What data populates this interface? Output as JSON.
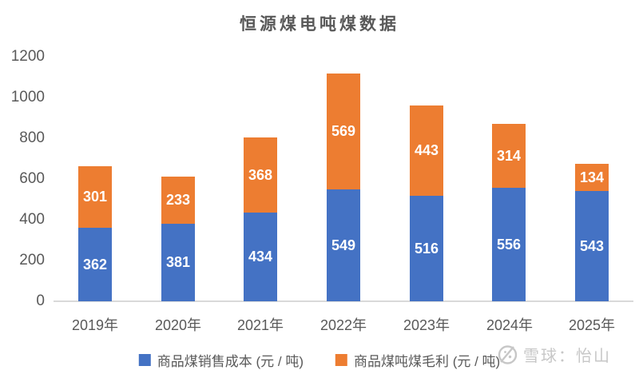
{
  "chart_data": {
    "type": "bar",
    "stacked": true,
    "title": "恒源煤电吨煤数据",
    "categories": [
      "2019年",
      "2020年",
      "2021年",
      "2022年",
      "2023年",
      "2024年",
      "2025年"
    ],
    "series": [
      {
        "name": "商品煤销售成本 (元 / 吨)",
        "color": "#4472C4",
        "values": [
          362,
          381,
          434,
          549,
          516,
          556,
          543
        ]
      },
      {
        "name": "商品煤吨煤毛利 (元 / 吨)",
        "color": "#ED7D31",
        "values": [
          301,
          233,
          368,
          569,
          443,
          314,
          134
        ]
      }
    ],
    "ylim": [
      0,
      1200
    ],
    "yticks": [
      0,
      200,
      400,
      600,
      800,
      1000,
      1200
    ],
    "xlabel": "",
    "ylabel": "",
    "grid": false,
    "legend_position": "bottom",
    "data_labels": true,
    "data_label_color": "#ffffff",
    "axis_text_color": "#595959",
    "axis_line_color": "#d9d9d9"
  },
  "watermark": {
    "text": "雪球：怡山",
    "logo": "xueqiu-snowball-icon",
    "color": "#c7c7c7"
  }
}
